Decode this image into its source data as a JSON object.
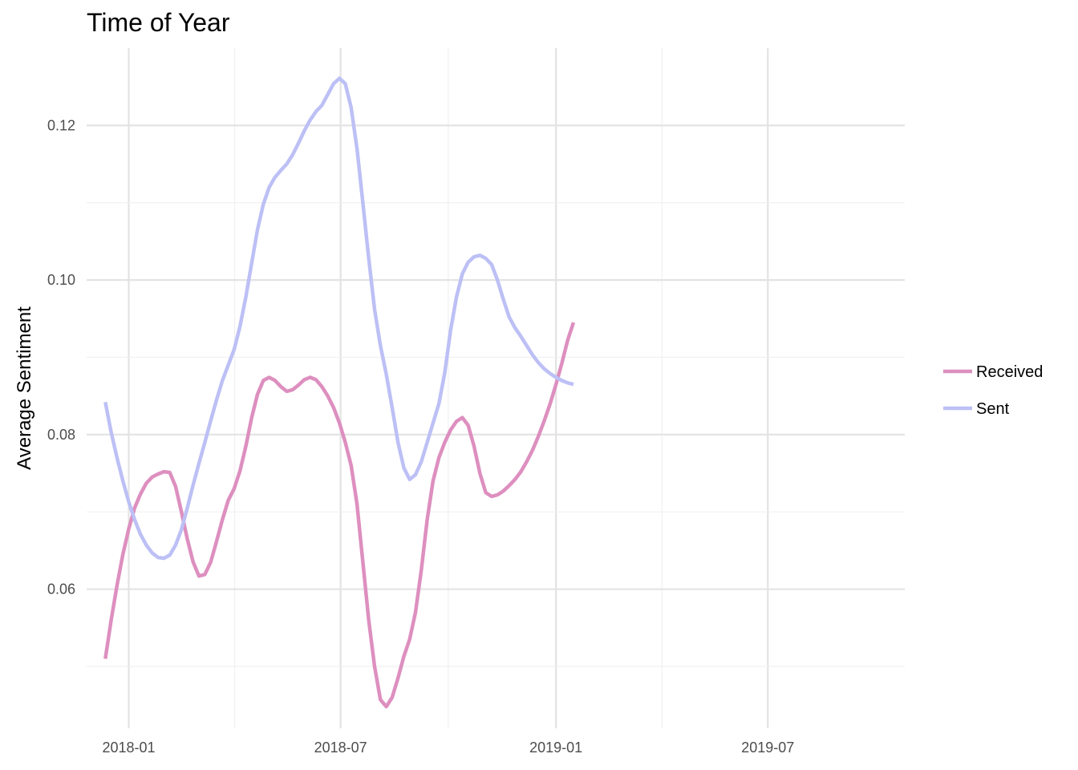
{
  "chart_data": {
    "type": "line",
    "title": "Time of Year",
    "xlabel": "",
    "ylabel": "Average Sentiment",
    "x_ticks": [
      "2018-01",
      "2018-07",
      "2019-01",
      "2019-07"
    ],
    "y_ticks": [
      "0.06",
      "0.08",
      "0.10",
      "0.12"
    ],
    "xlim": [
      "2017-11-26",
      "2019-10-26"
    ],
    "ylim": [
      0.042,
      0.13
    ],
    "grid": true,
    "legend_position": "right",
    "series": [
      {
        "name": "Received",
        "color": "#dd8fbf",
        "points": [
          [
            "2017-12-12",
            0.051
          ],
          [
            "2017-12-17",
            0.056
          ],
          [
            "2017-12-22",
            0.0605
          ],
          [
            "2017-12-27",
            0.0645
          ],
          [
            "2018-01-01",
            0.0678
          ],
          [
            "2018-01-06",
            0.0705
          ],
          [
            "2018-01-11",
            0.0723
          ],
          [
            "2018-01-16",
            0.0737
          ],
          [
            "2018-01-21",
            0.0745
          ],
          [
            "2018-01-26",
            0.0749
          ],
          [
            "2018-01-31",
            0.0752
          ],
          [
            "2018-02-05",
            0.0751
          ],
          [
            "2018-02-10",
            0.0733
          ],
          [
            "2018-02-15",
            0.07
          ],
          [
            "2018-02-20",
            0.0665
          ],
          [
            "2018-02-25",
            0.0635
          ],
          [
            "2018-03-02",
            0.0617
          ],
          [
            "2018-03-07",
            0.0619
          ],
          [
            "2018-03-12",
            0.0635
          ],
          [
            "2018-03-17",
            0.0662
          ],
          [
            "2018-03-22",
            0.069
          ],
          [
            "2018-03-27",
            0.0715
          ],
          [
            "2018-04-01",
            0.073
          ],
          [
            "2018-04-06",
            0.0753
          ],
          [
            "2018-04-11",
            0.0785
          ],
          [
            "2018-04-16",
            0.0822
          ],
          [
            "2018-04-21",
            0.0852
          ],
          [
            "2018-04-26",
            0.087
          ],
          [
            "2018-05-01",
            0.0874
          ],
          [
            "2018-05-06",
            0.087
          ],
          [
            "2018-05-11",
            0.0862
          ],
          [
            "2018-05-16",
            0.0856
          ],
          [
            "2018-05-21",
            0.0858
          ],
          [
            "2018-05-26",
            0.0864
          ],
          [
            "2018-05-31",
            0.0871
          ],
          [
            "2018-06-05",
            0.0874
          ],
          [
            "2018-06-10",
            0.0871
          ],
          [
            "2018-06-15",
            0.0862
          ],
          [
            "2018-06-20",
            0.085
          ],
          [
            "2018-06-25",
            0.0835
          ],
          [
            "2018-06-30",
            0.0815
          ],
          [
            "2018-07-05",
            0.079
          ],
          [
            "2018-07-10",
            0.076
          ],
          [
            "2018-07-15",
            0.071
          ],
          [
            "2018-07-20",
            0.0635
          ],
          [
            "2018-07-25",
            0.056
          ],
          [
            "2018-07-30",
            0.05
          ],
          [
            "2018-08-04",
            0.0457
          ],
          [
            "2018-08-09",
            0.0448
          ],
          [
            "2018-08-14",
            0.046
          ],
          [
            "2018-08-19",
            0.0485
          ],
          [
            "2018-08-24",
            0.0513
          ],
          [
            "2018-08-29",
            0.0535
          ],
          [
            "2018-09-03",
            0.057
          ],
          [
            "2018-09-08",
            0.0625
          ],
          [
            "2018-09-13",
            0.069
          ],
          [
            "2018-09-18",
            0.074
          ],
          [
            "2018-09-23",
            0.077
          ],
          [
            "2018-09-28",
            0.079
          ],
          [
            "2018-10-03",
            0.0806
          ],
          [
            "2018-10-08",
            0.0817
          ],
          [
            "2018-10-13",
            0.0822
          ],
          [
            "2018-10-18",
            0.0812
          ],
          [
            "2018-10-23",
            0.0785
          ],
          [
            "2018-10-28",
            0.075
          ],
          [
            "2018-11-02",
            0.0725
          ],
          [
            "2018-11-07",
            0.072
          ],
          [
            "2018-11-12",
            0.0722
          ],
          [
            "2018-11-17",
            0.0727
          ],
          [
            "2018-11-22",
            0.0734
          ],
          [
            "2018-11-27",
            0.0742
          ],
          [
            "2018-12-02",
            0.0752
          ],
          [
            "2018-12-07",
            0.0765
          ],
          [
            "2018-12-12",
            0.078
          ],
          [
            "2018-12-17",
            0.0798
          ],
          [
            "2018-12-22",
            0.0818
          ],
          [
            "2018-12-27",
            0.084
          ],
          [
            "2019-01-01",
            0.0865
          ],
          [
            "2019-01-06",
            0.0892
          ],
          [
            "2019-01-11",
            0.0922
          ],
          [
            "2019-01-16",
            0.0945
          ]
        ]
      },
      {
        "name": "Sent",
        "color": "#bcc0f5",
        "points": [
          [
            "2017-12-12",
            0.0842
          ],
          [
            "2017-12-17",
            0.0803
          ],
          [
            "2017-12-22",
            0.077
          ],
          [
            "2017-12-27",
            0.074
          ],
          [
            "2018-01-01",
            0.0713
          ],
          [
            "2018-01-06",
            0.069
          ],
          [
            "2018-01-11",
            0.0671
          ],
          [
            "2018-01-16",
            0.0657
          ],
          [
            "2018-01-21",
            0.0647
          ],
          [
            "2018-01-26",
            0.0641
          ],
          [
            "2018-01-31",
            0.064
          ],
          [
            "2018-02-05",
            0.0644
          ],
          [
            "2018-02-10",
            0.0657
          ],
          [
            "2018-02-15",
            0.0677
          ],
          [
            "2018-02-20",
            0.0705
          ],
          [
            "2018-02-25",
            0.0735
          ],
          [
            "2018-03-02",
            0.0763
          ],
          [
            "2018-03-07",
            0.079
          ],
          [
            "2018-03-12",
            0.0818
          ],
          [
            "2018-03-17",
            0.0845
          ],
          [
            "2018-03-22",
            0.087
          ],
          [
            "2018-03-27",
            0.089
          ],
          [
            "2018-04-01",
            0.091
          ],
          [
            "2018-04-06",
            0.094
          ],
          [
            "2018-04-11",
            0.0978
          ],
          [
            "2018-04-16",
            0.1022
          ],
          [
            "2018-04-21",
            0.1065
          ],
          [
            "2018-04-26",
            0.1098
          ],
          [
            "2018-05-01",
            0.112
          ],
          [
            "2018-05-06",
            0.1133
          ],
          [
            "2018-05-11",
            0.1142
          ],
          [
            "2018-05-16",
            0.115
          ],
          [
            "2018-05-21",
            0.1162
          ],
          [
            "2018-05-26",
            0.1177
          ],
          [
            "2018-05-31",
            0.1193
          ],
          [
            "2018-06-05",
            0.1207
          ],
          [
            "2018-06-10",
            0.1218
          ],
          [
            "2018-06-15",
            0.1226
          ],
          [
            "2018-06-20",
            0.124
          ],
          [
            "2018-06-25",
            0.1254
          ],
          [
            "2018-06-30",
            0.1261
          ],
          [
            "2018-07-05",
            0.1254
          ],
          [
            "2018-07-10",
            0.1223
          ],
          [
            "2018-07-15",
            0.117
          ],
          [
            "2018-07-20",
            0.11
          ],
          [
            "2018-07-25",
            0.1028
          ],
          [
            "2018-07-30",
            0.0962
          ],
          [
            "2018-08-04",
            0.0915
          ],
          [
            "2018-08-09",
            0.0878
          ],
          [
            "2018-08-14",
            0.0835
          ],
          [
            "2018-08-19",
            0.079
          ],
          [
            "2018-08-24",
            0.0757
          ],
          [
            "2018-08-29",
            0.0742
          ],
          [
            "2018-09-03",
            0.0748
          ],
          [
            "2018-09-08",
            0.0765
          ],
          [
            "2018-09-13",
            0.079
          ],
          [
            "2018-09-18",
            0.0815
          ],
          [
            "2018-09-23",
            0.084
          ],
          [
            "2018-09-28",
            0.088
          ],
          [
            "2018-10-03",
            0.0935
          ],
          [
            "2018-10-08",
            0.0978
          ],
          [
            "2018-10-13",
            0.1008
          ],
          [
            "2018-10-18",
            0.1023
          ],
          [
            "2018-10-23",
            0.103
          ],
          [
            "2018-10-28",
            0.1032
          ],
          [
            "2018-11-02",
            0.1028
          ],
          [
            "2018-11-07",
            0.102
          ],
          [
            "2018-11-12",
            0.1
          ],
          [
            "2018-11-17",
            0.0975
          ],
          [
            "2018-11-22",
            0.0952
          ],
          [
            "2018-11-27",
            0.0938
          ],
          [
            "2018-12-02",
            0.0927
          ],
          [
            "2018-12-07",
            0.0915
          ],
          [
            "2018-12-12",
            0.0903
          ],
          [
            "2018-12-17",
            0.0893
          ],
          [
            "2018-12-22",
            0.0885
          ],
          [
            "2018-12-27",
            0.0879
          ],
          [
            "2019-01-01",
            0.0874
          ],
          [
            "2019-01-06",
            0.087
          ],
          [
            "2019-01-11",
            0.0867
          ],
          [
            "2019-01-16",
            0.0865
          ]
        ]
      }
    ]
  }
}
